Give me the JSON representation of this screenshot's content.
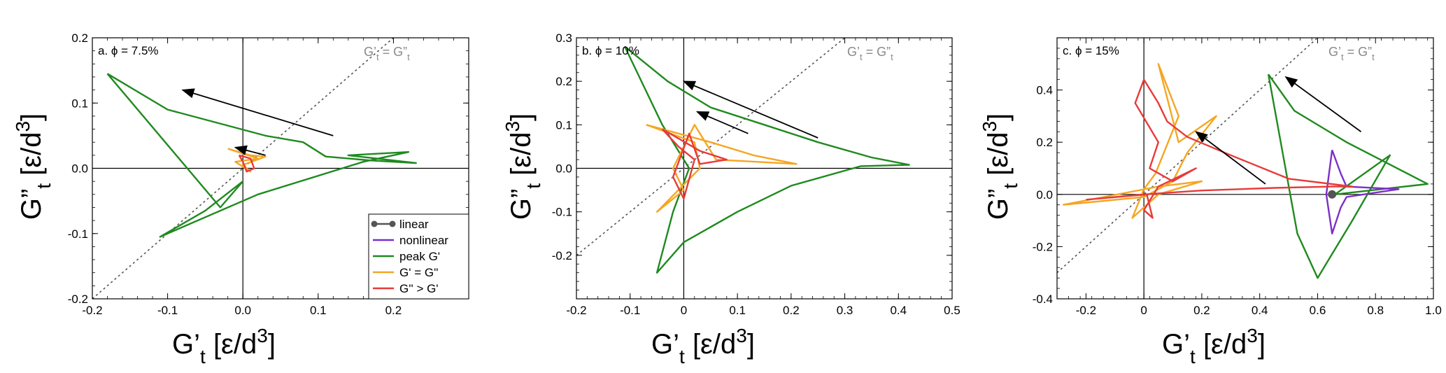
{
  "legend": {
    "entries": [
      {
        "label": "linear",
        "color": "#555555",
        "marker": "circle-line"
      },
      {
        "label": "nonlinear",
        "color": "#7b2fc9",
        "marker": "line"
      },
      {
        "label": "peak G'",
        "color": "#1f8a1f",
        "marker": "line"
      },
      {
        "label": "G' = G''",
        "color": "#f5a623",
        "marker": "line"
      },
      {
        "label": "G'' > G'",
        "color": "#e83a3a",
        "marker": "line"
      }
    ],
    "placement": "lower-right of panel a"
  },
  "chart_data": [
    {
      "type": "line",
      "panel_label": "a. ϕ = 7.5%",
      "diagonal_label": "G't = G\"t",
      "xlim": [
        -0.2,
        0.3
      ],
      "ylim": [
        -0.2,
        0.2
      ],
      "xticks": [
        -0.2,
        -0.1,
        0.0,
        0.1,
        0.2
      ],
      "yticks": [
        -0.2,
        -0.1,
        0.0,
        0.1,
        0.2
      ],
      "xtick_labels": [
        "-0.2",
        "-0.1",
        "0.0",
        "0.1",
        "0.2"
      ],
      "ytick_labels": [
        "-0.2",
        "-0.1",
        "0.0",
        "0.1",
        "0.2"
      ],
      "arrows": [
        {
          "from": [
            0.12,
            0.05
          ],
          "to": [
            -0.08,
            0.12
          ]
        },
        {
          "from": [
            0.03,
            0.02
          ],
          "to": [
            -0.01,
            0.032
          ]
        }
      ],
      "series": [
        {
          "name": "peak G'",
          "color": "#1f8a1f",
          "x": [
            -0.18,
            -0.1,
            0.03,
            0.08,
            0.11,
            0.17,
            0.23,
            0.14,
            0.22,
            0.16,
            0.02,
            -0.11,
            -0.05,
            0.0,
            -0.03,
            -0.18
          ],
          "y": [
            0.145,
            0.09,
            0.05,
            0.04,
            0.018,
            0.012,
            0.008,
            0.02,
            0.025,
            0.01,
            -0.04,
            -0.105,
            -0.065,
            -0.02,
            -0.06,
            0.145
          ]
        },
        {
          "name": "G' = G''",
          "color": "#f5a623",
          "x": [
            -0.02,
            0.01,
            0.03,
            0.0,
            0.01,
            -0.01,
            0.02,
            -0.02
          ],
          "y": [
            0.03,
            0.02,
            0.018,
            0.005,
            -0.005,
            0.01,
            0.015,
            0.03
          ]
        },
        {
          "name": "G'' > G'",
          "color": "#e83a3a",
          "x": [
            -0.005,
            0.01,
            0.015,
            0.005,
            0.0,
            -0.005
          ],
          "y": [
            0.02,
            0.015,
            0.0,
            -0.005,
            0.01,
            0.02
          ]
        }
      ]
    },
    {
      "type": "line",
      "panel_label": "b. ϕ = 10%",
      "diagonal_label": "G't = G\"t",
      "xlim": [
        -0.2,
        0.5
      ],
      "ylim": [
        -0.3,
        0.3
      ],
      "xticks": [
        -0.2,
        -0.1,
        0.0,
        0.1,
        0.2,
        0.3,
        0.4,
        0.5
      ],
      "yticks": [
        -0.2,
        -0.1,
        0.0,
        0.1,
        0.2,
        0.3
      ],
      "xtick_labels": [
        "-0.2",
        "-0.1",
        "0",
        "0.1",
        "0.2",
        "0.3",
        "0.4",
        "0.5"
      ],
      "ytick_labels": [
        "-0.2",
        "-0.1",
        "0.0",
        "0.1",
        "0.2",
        "0.3"
      ],
      "arrows": [
        {
          "from": [
            0.25,
            0.07
          ],
          "to": [
            0.0,
            0.2
          ]
        },
        {
          "from": [
            0.12,
            0.08
          ],
          "to": [
            0.025,
            0.13
          ]
        }
      ],
      "series": [
        {
          "name": "peak G'",
          "color": "#1f8a1f",
          "x": [
            -0.11,
            -0.03,
            0.05,
            0.15,
            0.25,
            0.35,
            0.42,
            0.33,
            0.2,
            0.1,
            0.0,
            -0.05,
            -0.02,
            0.01,
            -0.04,
            -0.11
          ],
          "y": [
            0.28,
            0.2,
            0.14,
            0.1,
            0.06,
            0.025,
            0.008,
            0.005,
            -0.04,
            -0.1,
            -0.17,
            -0.24,
            -0.1,
            0.0,
            0.1,
            0.28
          ]
        },
        {
          "name": "G' = G''",
          "color": "#f5a623",
          "x": [
            -0.07,
            0.05,
            0.13,
            0.21,
            0.06,
            0.02,
            -0.02,
            0.0,
            -0.05,
            0.03,
            0.02,
            -0.07
          ],
          "y": [
            0.1,
            0.06,
            0.03,
            0.01,
            0.02,
            0.1,
            0.0,
            -0.05,
            -0.1,
            0.0,
            0.06,
            0.1
          ]
        },
        {
          "name": "G'' > G'",
          "color": "#e83a3a",
          "x": [
            -0.04,
            0.03,
            0.08,
            0.03,
            0.01,
            -0.02,
            0.0,
            0.02,
            -0.01,
            -0.04
          ],
          "y": [
            0.09,
            0.04,
            0.02,
            0.01,
            0.08,
            -0.02,
            -0.07,
            0.02,
            0.05,
            0.09
          ]
        }
      ]
    },
    {
      "type": "line",
      "panel_label": "c. ϕ = 15%",
      "diagonal_label": "G't = G\"t",
      "xlim": [
        -0.3,
        1.0
      ],
      "ylim": [
        -0.4,
        0.6
      ],
      "xticks": [
        -0.2,
        0.0,
        0.2,
        0.4,
        0.6,
        0.8,
        1.0
      ],
      "yticks": [
        -0.4,
        -0.2,
        0.0,
        0.2,
        0.4
      ],
      "xtick_labels": [
        "-0.2",
        "0",
        "0.2",
        "0.4",
        "0.6",
        "0.8",
        "1.0"
      ],
      "ytick_labels": [
        "-0.4",
        "-0.2",
        "0.0",
        "0.2",
        "0.4"
      ],
      "arrows": [
        {
          "from": [
            0.42,
            0.04
          ],
          "to": [
            0.18,
            0.24
          ]
        },
        {
          "from": [
            0.75,
            0.24
          ],
          "to": [
            0.49,
            0.45
          ]
        }
      ],
      "markers": [
        {
          "name": "linear",
          "x": 0.65,
          "y": 0.0
        }
      ],
      "series": [
        {
          "name": "peak G'",
          "color": "#1f8a1f",
          "x": [
            0.43,
            0.52,
            0.7,
            0.98,
            0.82,
            0.66,
            0.85,
            0.72,
            0.6,
            0.53,
            0.43
          ],
          "y": [
            0.46,
            0.32,
            0.2,
            0.04,
            0.02,
            0.0,
            0.15,
            -0.1,
            -0.32,
            -0.15,
            0.46
          ]
        },
        {
          "name": "nonlinear",
          "color": "#7b2fc9",
          "x": [
            0.65,
            0.68,
            0.7,
            0.88,
            0.7,
            0.68,
            0.65,
            0.63,
            0.65
          ],
          "y": [
            0.17,
            0.08,
            0.03,
            0.02,
            -0.01,
            -0.05,
            -0.15,
            0.0,
            0.17
          ]
        },
        {
          "name": "G' = G''",
          "color": "#f5a623",
          "x": [
            -0.28,
            0.0,
            0.1,
            0.15,
            0.25,
            0.12,
            0.05,
            0.12,
            0.04,
            0.0,
            -0.04,
            0.05,
            0.2,
            0.05,
            -0.28
          ],
          "y": [
            -0.04,
            -0.01,
            0.05,
            0.16,
            0.3,
            0.2,
            0.5,
            0.3,
            0.08,
            0.02,
            -0.09,
            0.0,
            0.05,
            0.03,
            -0.04
          ]
        },
        {
          "name": "G'' > G'",
          "color": "#e83a3a",
          "x": [
            -0.2,
            0.0,
            0.2,
            0.45,
            0.65,
            0.72,
            0.5,
            0.3,
            0.15,
            0.08,
            0.05,
            0.0,
            -0.03,
            0.05,
            0.02,
            0.1,
            0.18,
            0.05,
            0.0,
            0.03,
            0.01,
            -0.2
          ],
          "y": [
            -0.02,
            0.0,
            0.015,
            0.025,
            0.03,
            0.03,
            0.06,
            0.15,
            0.22,
            0.28,
            0.35,
            0.44,
            0.35,
            0.2,
            0.1,
            0.05,
            0.1,
            0.03,
            -0.06,
            -0.09,
            0.0,
            -0.02
          ]
        }
      ]
    }
  ]
}
